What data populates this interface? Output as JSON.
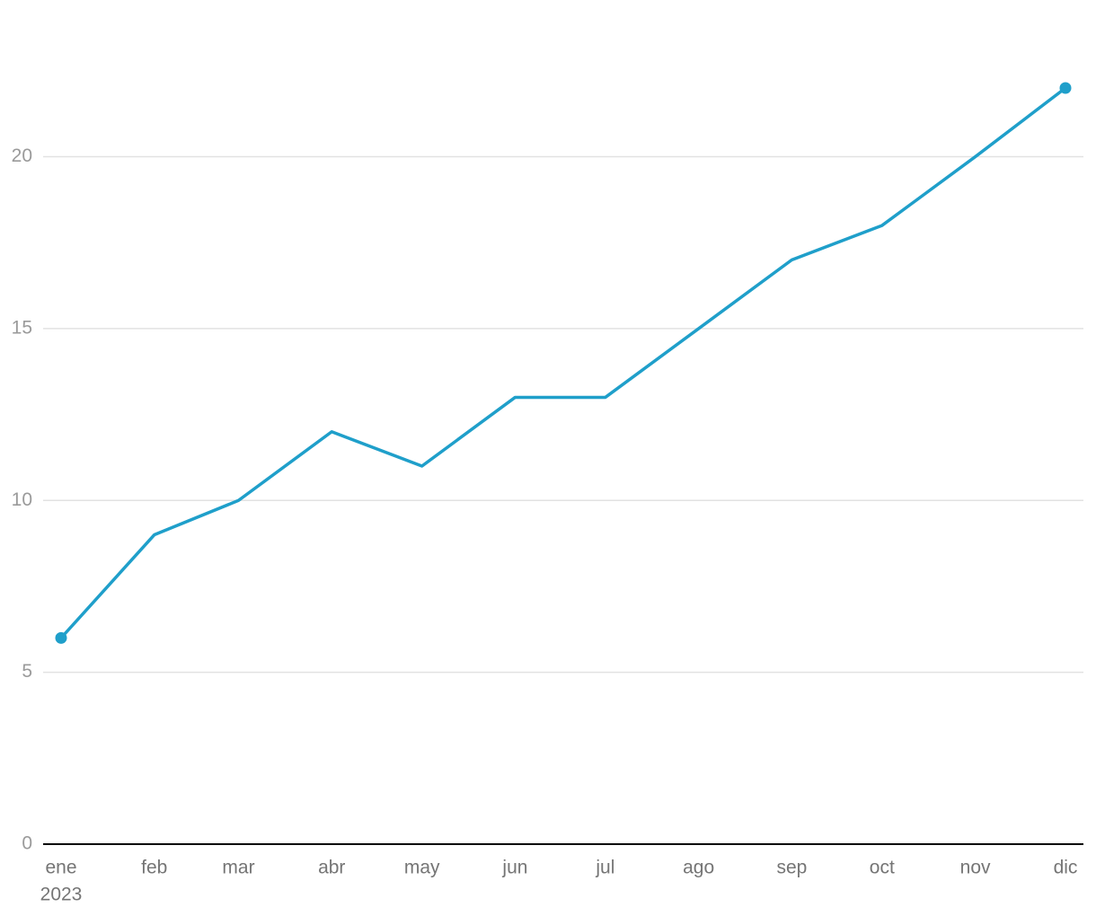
{
  "chart_data": {
    "type": "line",
    "x": [
      "2023-01",
      "2023-02",
      "2023-03",
      "2023-04",
      "2023-05",
      "2023-06",
      "2023-07",
      "2023-08",
      "2023-09",
      "2023-10",
      "2023-11",
      "2023-12"
    ],
    "values": [
      6,
      9,
      10,
      12,
      11,
      13,
      13,
      15,
      17,
      18,
      20,
      22
    ],
    "color": "#1f9fca",
    "end_markers": true,
    "xlim": [
      "2023-01",
      "2023-12"
    ],
    "xticks": [
      {
        "value": "2023-01",
        "label": "ene"
      },
      {
        "value": "2023-02",
        "label": "feb"
      },
      {
        "value": "2023-03",
        "label": "mar"
      },
      {
        "value": "2023-04",
        "label": "abr"
      },
      {
        "value": "2023-05",
        "label": "may"
      },
      {
        "value": "2023-06",
        "label": "jun"
      },
      {
        "value": "2023-07",
        "label": "jul"
      },
      {
        "value": "2023-08",
        "label": "ago"
      },
      {
        "value": "2023-09",
        "label": "sep"
      },
      {
        "value": "2023-10",
        "label": "oct"
      },
      {
        "value": "2023-11",
        "label": "nov"
      },
      {
        "value": "2023-12",
        "label": "dic"
      }
    ],
    "x_year_label": "2023",
    "ylim": [
      0,
      22
    ],
    "yticks": [
      0,
      5,
      10,
      15,
      20
    ],
    "grid": true
  }
}
